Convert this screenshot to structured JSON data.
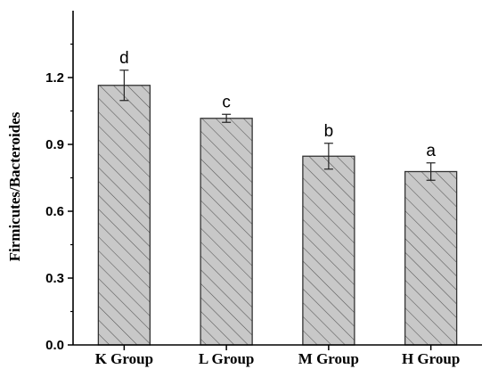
{
  "chart_data": {
    "type": "bar",
    "title": "",
    "xlabel": "",
    "ylabel": "Firmicutes/Bacteroides",
    "categories": [
      "K Group",
      "L Group",
      "M Group",
      "H Group"
    ],
    "values": [
      1.165,
      1.017,
      0.847,
      0.778
    ],
    "errors": [
      0.068,
      0.018,
      0.058,
      0.039
    ],
    "significance_letters": [
      "d",
      "c",
      "b",
      "a"
    ],
    "ylim": [
      0.0,
      1.5
    ],
    "yticks": [
      0.0,
      0.3,
      0.6,
      0.9,
      1.2
    ],
    "ytick_labels": [
      "0.0",
      "0.3",
      "0.6",
      "0.9",
      "1.2"
    ],
    "grid": false,
    "bar_fill": "#c8c8c8",
    "hatch": "diagonal"
  }
}
